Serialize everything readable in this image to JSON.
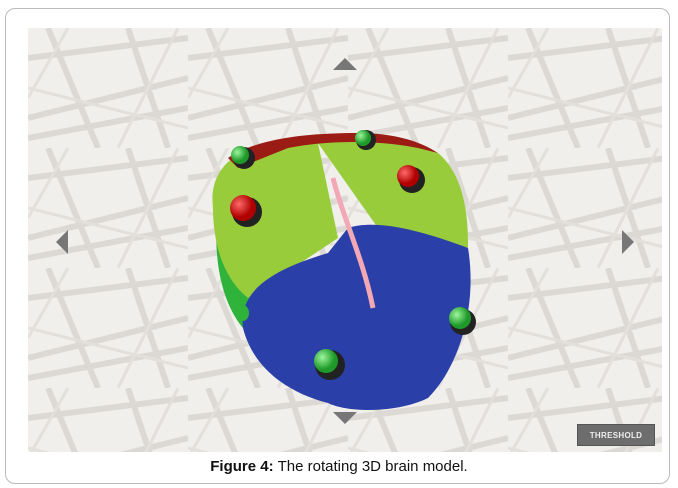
{
  "figure": {
    "button": "THRESHOLD",
    "caption": {
      "label": "Figure 4:",
      "text": "The rotating 3D brain model."
    }
  }
}
